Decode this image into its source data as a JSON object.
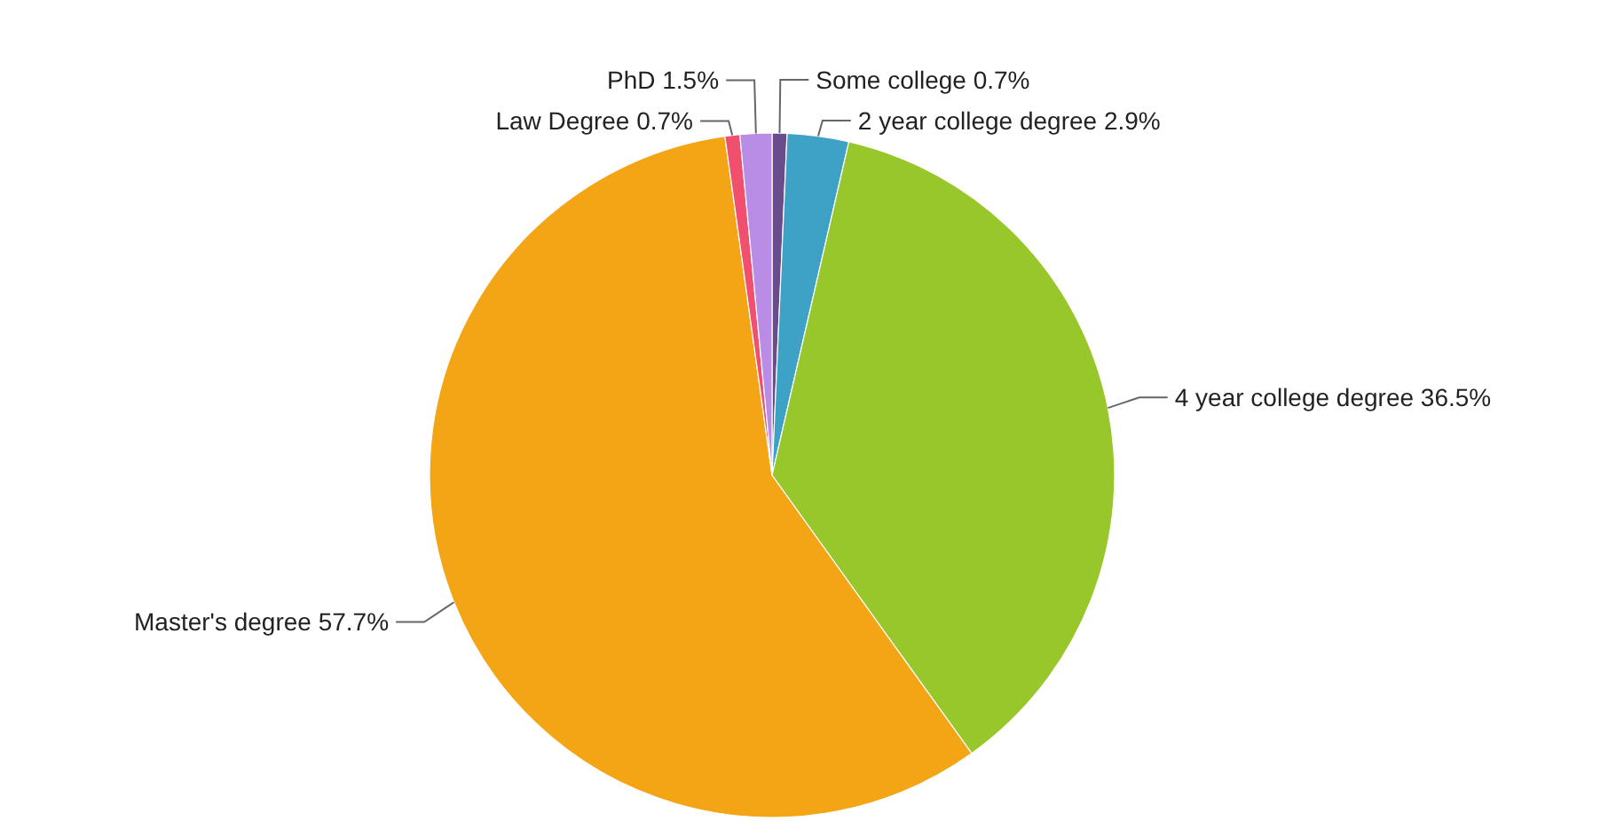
{
  "chart_data": {
    "type": "pie",
    "categories": [
      "Some college",
      "2 year college degree",
      "4 year college degree",
      "Master's degree",
      "Law Degree",
      "PhD"
    ],
    "values": [
      0.7,
      2.9,
      36.5,
      57.7,
      0.7,
      1.5
    ],
    "value_labels": [
      "0.7%",
      "2.9%",
      "36.5%",
      "57.7%",
      "0.7%",
      "1.5%"
    ],
    "colors": [
      "#6a4c8c",
      "#3ea2c6",
      "#97c72a",
      "#f4a516",
      "#f0506e",
      "#b98de6"
    ]
  }
}
